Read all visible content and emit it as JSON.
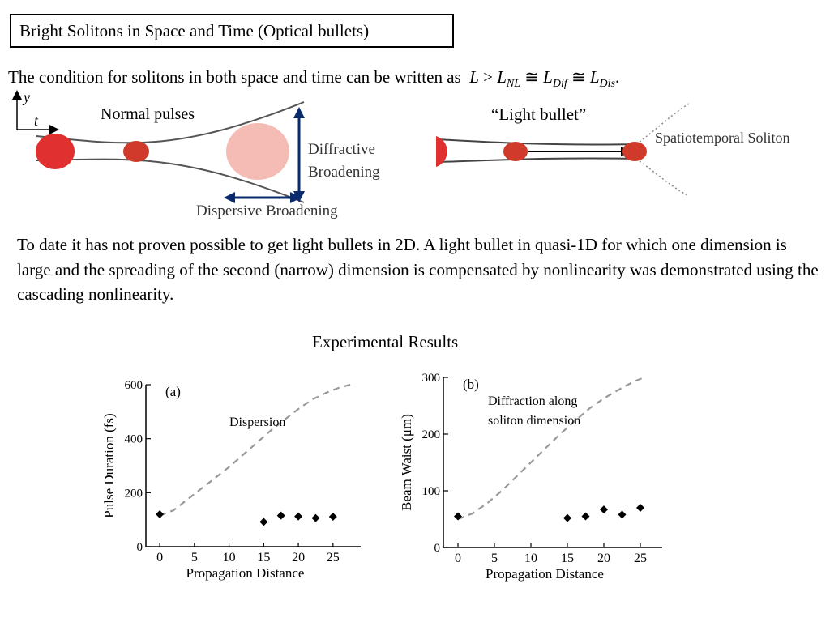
{
  "slide": {
    "title": "Bright Solitons in Space and Time (Optical bullets)",
    "condition_text": "The condition for solitons in both space and time can be written as",
    "equation": {
      "L": "L",
      "gt": " > ",
      "L_NL": "L",
      "sub_NL": "NL",
      "approx1": " ≅ ",
      "L_Dif": "L",
      "sub_Dif": "Dif",
      "approx2": " ≅ ",
      "L_Dis": "L",
      "sub_Dis": "Dis",
      "period": "."
    },
    "paragraph": "To date it has not proven possible to get light bullets in 2D. A light bullet in quasi-1D for which one dimension is large and the spreading of the second (narrow) dimension is compensated by nonlinearity was demonstrated using the cascading nonlinearity.",
    "experimental_title": "Experimental Results"
  },
  "diagram_left": {
    "axis_y": "y",
    "axis_t": "t",
    "label": "Normal pulses",
    "diffractive_line1": "Diffractive",
    "diffractive_line2": "Broadening",
    "dispersive": "Dispersive  Broadening"
  },
  "diagram_right": {
    "label": "“Light bullet”",
    "soliton": "Spatiotemporal  Soliton"
  },
  "chart_data": [
    {
      "type": "scatter",
      "panel_label": "(a)",
      "xlabel": "Propagation Distance",
      "ylabel": "Pulse Duration (fs)",
      "annotation": "Dispersion",
      "xticks": [
        "0",
        "5",
        "10",
        "15",
        "20",
        "25"
      ],
      "yticks": [
        "0",
        "200",
        "400",
        "600"
      ],
      "xlim": [
        -2,
        29
      ],
      "ylim": [
        0,
        600
      ],
      "points": [
        [
          0,
          120
        ],
        [
          15,
          92
        ],
        [
          17.5,
          115
        ],
        [
          20,
          112
        ],
        [
          22.5,
          106
        ],
        [
          25,
          111
        ]
      ],
      "dashed_curve": [
        [
          0,
          115
        ],
        [
          2,
          135
        ],
        [
          4,
          175
        ],
        [
          6,
          215
        ],
        [
          8,
          255
        ],
        [
          10,
          295
        ],
        [
          12,
          340
        ],
        [
          14,
          385
        ],
        [
          16,
          430
        ],
        [
          18,
          470
        ],
        [
          20,
          510
        ],
        [
          22,
          545
        ],
        [
          24,
          570
        ],
        [
          26,
          590
        ],
        [
          27.5,
          600
        ]
      ],
      "colors": {
        "points": "#000000",
        "curve": "#999999"
      }
    },
    {
      "type": "scatter",
      "panel_label": "(b)",
      "xlabel": "Propagation Distance",
      "ylabel": "Beam Waist (μm)",
      "annotation_line1": "Diffraction along",
      "annotation_line2": "soliton dimension",
      "xticks": [
        "0",
        "5",
        "10",
        "15",
        "20",
        "25"
      ],
      "yticks": [
        "0",
        "100",
        "200",
        "300"
      ],
      "xlim": [
        -2,
        28
      ],
      "ylim": [
        0,
        300
      ],
      "points": [
        [
          0,
          55
        ],
        [
          15,
          52
        ],
        [
          17.5,
          55
        ],
        [
          20,
          67
        ],
        [
          22.5,
          58
        ],
        [
          25,
          70
        ]
      ],
      "dashed_curve": [
        [
          0,
          50
        ],
        [
          2,
          60
        ],
        [
          4,
          78
        ],
        [
          6,
          100
        ],
        [
          8,
          125
        ],
        [
          10,
          150
        ],
        [
          12,
          175
        ],
        [
          14,
          200
        ],
        [
          16,
          223
        ],
        [
          18,
          245
        ],
        [
          20,
          263
        ],
        [
          22,
          278
        ],
        [
          24,
          292
        ],
        [
          25.5,
          300
        ]
      ],
      "colors": {
        "points": "#000000",
        "curve": "#999999"
      }
    }
  ]
}
